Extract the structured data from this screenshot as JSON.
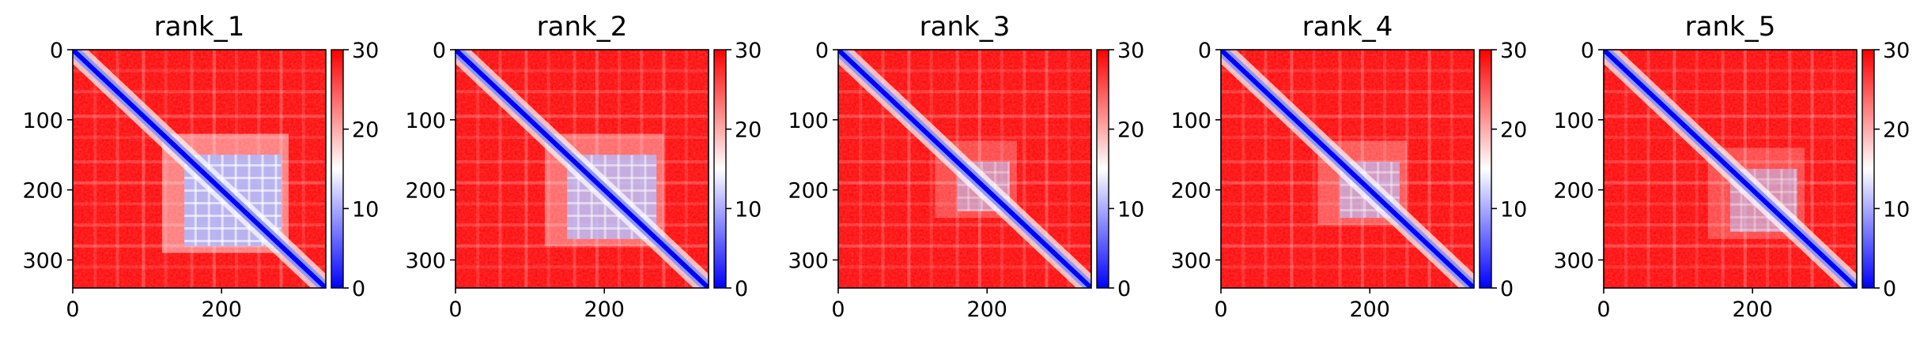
{
  "colorbar": {
    "vmin": 0,
    "vmax": 30,
    "ticks": [
      "0",
      "10",
      "20",
      "30"
    ],
    "colormap": "bwr",
    "colors": {
      "low": "#0000ff",
      "mid": "#ffffff",
      "high": "#ff0000"
    }
  },
  "chart_data": [
    {
      "type": "heatmap",
      "title": "rank_1",
      "xlim": [
        0,
        340
      ],
      "ylim": [
        340,
        0
      ],
      "xticks": [
        "0",
        "200"
      ],
      "yticks": [
        "0",
        "100",
        "200",
        "300"
      ],
      "diagonal_band": "blue",
      "block_region": [
        150,
        280
      ],
      "block_intensity": 0.85
    },
    {
      "type": "heatmap",
      "title": "rank_2",
      "xlim": [
        0,
        340
      ],
      "ylim": [
        340,
        0
      ],
      "xticks": [
        "0",
        "200"
      ],
      "yticks": [
        "0",
        "100",
        "200",
        "300"
      ],
      "diagonal_band": "blue",
      "block_region": [
        150,
        270
      ],
      "block_intensity": 0.7
    },
    {
      "type": "heatmap",
      "title": "rank_3",
      "xlim": [
        0,
        340
      ],
      "ylim": [
        340,
        0
      ],
      "xticks": [
        "0",
        "200"
      ],
      "yticks": [
        "0",
        "100",
        "200",
        "300"
      ],
      "diagonal_band": "blue",
      "block_region": [
        160,
        230
      ],
      "block_intensity": 0.45
    },
    {
      "type": "heatmap",
      "title": "rank_4",
      "xlim": [
        0,
        340
      ],
      "ylim": [
        340,
        0
      ],
      "xticks": [
        "0",
        "200"
      ],
      "yticks": [
        "0",
        "100",
        "200",
        "300"
      ],
      "diagonal_band": "blue",
      "block_region": [
        160,
        240
      ],
      "block_intensity": 0.55
    },
    {
      "type": "heatmap",
      "title": "rank_5",
      "xlim": [
        0,
        340
      ],
      "ylim": [
        340,
        0
      ],
      "xticks": [
        "0",
        "200"
      ],
      "yticks": [
        "0",
        "100",
        "200",
        "300"
      ],
      "diagonal_band": "blue",
      "block_region": [
        170,
        260
      ],
      "block_intensity": 0.45
    }
  ]
}
